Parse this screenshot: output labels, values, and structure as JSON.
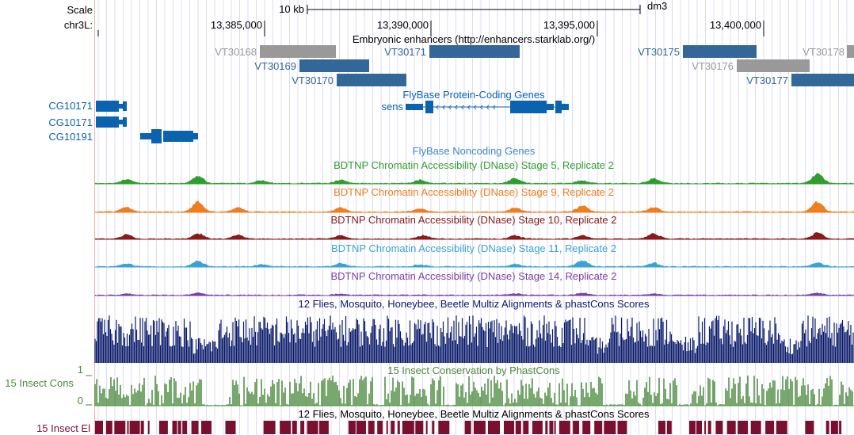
{
  "ruler": {
    "scale_label": "Scale",
    "chrom_label": "chr3L:",
    "scale_bar_label": "10 kb",
    "assembly": "dm3",
    "positions": [
      "13,385,000",
      "13,390,000",
      "13,395,000",
      "13,400,000"
    ]
  },
  "tracks": {
    "enhancers": {
      "title": "Embryonic enhancers (http://enhancers.starklab.org/)",
      "items": [
        {
          "label": "VT30168",
          "color": "#999999"
        },
        {
          "label": "VT30169",
          "color": "#336699"
        },
        {
          "label": "VT30170",
          "color": "#336699"
        },
        {
          "label": "VT30171",
          "color": "#336699"
        },
        {
          "label": "VT30175",
          "color": "#336699"
        },
        {
          "label": "VT30176",
          "color": "#999999"
        },
        {
          "label": "VT30177",
          "color": "#336699"
        },
        {
          "label": "VT30178",
          "color": "#999999"
        }
      ]
    },
    "flybase_coding": {
      "title": "FlyBase Protein-Coding Genes",
      "color": "#0b63b0",
      "genes": [
        "CG10171",
        "CG10171",
        "CG10191",
        "sens"
      ]
    },
    "flybase_noncoding": {
      "title": "FlyBase Noncoding Genes",
      "color": "#3f86d0"
    },
    "dnase": [
      {
        "title": "BDTNP Chromatin Accessibility (DNase) Stage 5, Replicate 2",
        "color": "#2f9e2f"
      },
      {
        "title": "BDTNP Chromatin Accessibility (DNase) Stage 9, Replicate 2",
        "color": "#f07d1e"
      },
      {
        "title": "BDTNP Chromatin Accessibility (DNase) Stage 10, Replicate 2",
        "color": "#8b1a1a"
      },
      {
        "title": "BDTNP Chromatin Accessibility (DNase) Stage 11, Replicate 2",
        "color": "#3aa3d4"
      },
      {
        "title": "BDTNP Chromatin Accessibility (DNase) Stage 14, Replicate 2",
        "color": "#7b3fa8"
      }
    ],
    "multiz": {
      "title": "12 Flies, Mosquito, Honeybee, Beetle Multiz Alignments & phastCons Scores",
      "color": "#0a1a6b"
    },
    "phastcons": {
      "title": "15 Insect Conservation by PhastCons",
      "side_label": "15 Insect Cons",
      "axis_top": "1",
      "axis_bottom": "0",
      "color": "#4a8a3c"
    },
    "elements": {
      "title": "12 Flies, Mosquito, Honeybee, Beetle Multiz Alignments & phastCons Scores",
      "side_label": "15 Insect El",
      "color": "#7a1030"
    }
  }
}
